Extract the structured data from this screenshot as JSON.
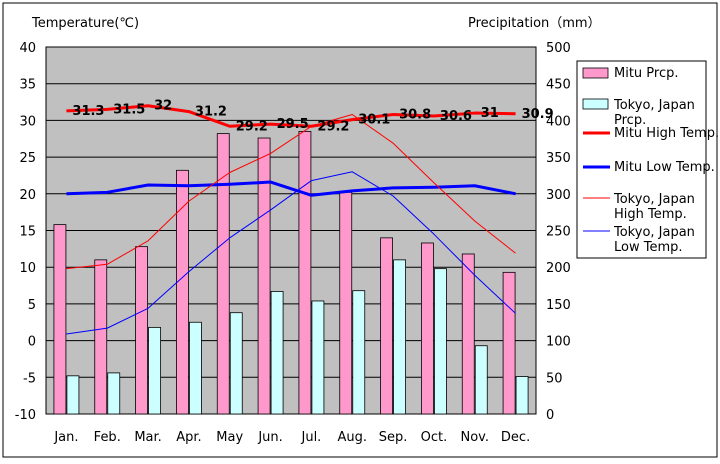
{
  "chart_data": {
    "type": "bar+line",
    "title": "",
    "left_axis_label": "Temperature(℃)",
    "right_axis_label": "Precipitation（mm）",
    "categories": [
      "Jan.",
      "Feb.",
      "Mar.",
      "Apr.",
      "May",
      "Jun.",
      "Jul.",
      "Aug.",
      "Sep.",
      "Oct.",
      "Nov.",
      "Dec."
    ],
    "left_axis": {
      "min": -10,
      "max": 40,
      "step": 5,
      "ticks": [
        "40",
        "35",
        "30",
        "25",
        "20",
        "15",
        "10",
        "5",
        "0",
        "-5",
        "-10"
      ]
    },
    "right_axis": {
      "min": 0,
      "max": 500,
      "step": 50,
      "ticks": [
        "500",
        "450",
        "400",
        "350",
        "300",
        "250",
        "200",
        "150",
        "100",
        "50",
        "0"
      ]
    },
    "grid": true,
    "legend_position": "right",
    "bar_series": [
      {
        "name": "Mitu Prcp.",
        "legend": [
          "Mitu Prcp."
        ],
        "color": "#ff99cc",
        "values": [
          258,
          210,
          228,
          332,
          382,
          376,
          385,
          302,
          240,
          233,
          218,
          193
        ]
      },
      {
        "name": "Tokyo, Japan Prcp.",
        "legend": [
          "Tokyo, Japan",
          "Prcp."
        ],
        "color": "#ccffff",
        "values": [
          52,
          56,
          118,
          125,
          138,
          167,
          154,
          168,
          210,
          198,
          93,
          51
        ]
      }
    ],
    "line_series": [
      {
        "name": "Mitu High Temp.",
        "legend": [
          "Mitu High Temp."
        ],
        "color": "#ff0000",
        "width": 3,
        "values": [
          31.3,
          31.5,
          32,
          31.2,
          29.2,
          29.5,
          29.2,
          30.1,
          30.8,
          30.6,
          31,
          30.9
        ],
        "labels": [
          "31.3",
          "31.5",
          "32",
          "31.2",
          "29.2",
          "29.5",
          "29.2",
          "30.1",
          "30.8",
          "30.6",
          "31",
          "30.9"
        ]
      },
      {
        "name": "Mitu Low Temp.",
        "legend": [
          "Mitu Low Temp."
        ],
        "color": "#0000ff",
        "width": 3,
        "values": [
          20.0,
          20.2,
          21.2,
          21.1,
          21.3,
          21.6,
          19.8,
          20.4,
          20.8,
          20.9,
          21.1,
          20.0
        ]
      },
      {
        "name": "Tokyo, Japan High Temp.",
        "legend": [
          "Tokyo, Japan",
          "High Temp."
        ],
        "color": "#ff0000",
        "width": 1,
        "values": [
          9.8,
          10.4,
          13.6,
          19.0,
          22.9,
          25.5,
          29.2,
          30.8,
          26.9,
          21.5,
          16.3,
          11.9
        ]
      },
      {
        "name": "Tokyo, Japan Low Temp.",
        "legend": [
          "Tokyo, Japan",
          "Low Temp."
        ],
        "color": "#0000ff",
        "width": 1,
        "values": [
          0.9,
          1.7,
          4.4,
          9.4,
          14.0,
          17.8,
          21.8,
          23.0,
          19.7,
          14.5,
          8.9,
          3.7
        ]
      }
    ]
  }
}
